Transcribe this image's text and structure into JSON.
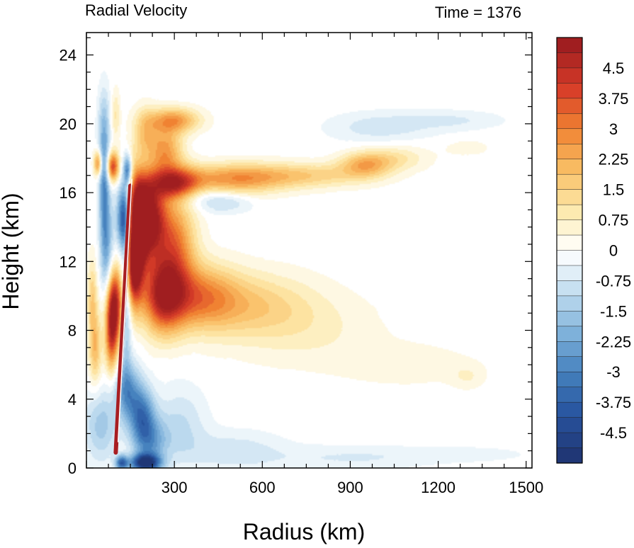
{
  "chart_data": {
    "type": "heatmap",
    "title": "Radial Velocity",
    "subtitle": "Time = 1376",
    "xlabel": "Radius (km)",
    "ylabel": "Height (km)",
    "xlim": [
      0,
      1520
    ],
    "ylim": [
      0,
      25.3
    ],
    "xticks": [
      300,
      600,
      900,
      1200,
      1500
    ],
    "xtick_labels": [
      "300",
      "600",
      "900",
      "1200",
      "1500"
    ],
    "yticks": [
      0,
      4,
      8,
      12,
      16,
      20,
      24
    ],
    "ytick_labels": [
      "0",
      "4",
      "8",
      "12",
      "16",
      "20",
      "24"
    ],
    "colorbar": {
      "min": -5.25,
      "max": 5.25,
      "step": 0.375,
      "labels": [
        "4.5",
        "3.75",
        "3",
        "2.25",
        "1.5",
        "0.75",
        "0",
        "-0.75",
        "-1.5",
        "-2.25",
        "-3",
        "-3.75",
        "-4.5"
      ],
      "label_values": [
        4.5,
        3.75,
        3,
        2.25,
        1.5,
        0.75,
        0,
        -0.75,
        -1.5,
        -2.25,
        -3,
        -3.75,
        -4.5
      ]
    },
    "features": [
      {
        "r": 130,
        "z": 14.5,
        "v": -5.0,
        "sr": 18,
        "sz": 1.4
      },
      {
        "r": 140,
        "z": 17.3,
        "v": -3.0,
        "sr": 10,
        "sz": 0.6
      },
      {
        "r": 60,
        "z": 16.5,
        "v": -2.5,
        "sr": 12,
        "sz": 2.5
      },
      {
        "r": 70,
        "z": 12.5,
        "v": -2.0,
        "sr": 15,
        "sz": 2.5
      },
      {
        "r": 135,
        "z": 10.5,
        "v": -2.5,
        "sr": 12,
        "sz": 3.0
      },
      {
        "r": 20,
        "z": 10.0,
        "v": 1.5,
        "sr": 12,
        "sz": 1.5
      },
      {
        "r": 90,
        "z": 17.5,
        "v": 4.0,
        "sr": 15,
        "sz": 0.6
      },
      {
        "r": 40,
        "z": 17.7,
        "v": 3.0,
        "sr": 10,
        "sz": 0.5
      },
      {
        "r": 210,
        "z": 14.5,
        "v": 5.5,
        "sr": 40,
        "sz": 1.6
      },
      {
        "r": 170,
        "z": 14.0,
        "v": 5.5,
        "sr": 25,
        "sz": 2.0
      },
      {
        "r": 160,
        "z": 11.5,
        "v": 4.0,
        "sr": 20,
        "sz": 1.5
      },
      {
        "r": 95,
        "z": 9.5,
        "v": 5.0,
        "sr": 20,
        "sz": 1.5
      },
      {
        "r": 85,
        "z": 7.5,
        "v": 3.0,
        "sr": 15,
        "sz": 1.5
      },
      {
        "r": 30,
        "z": 7.0,
        "v": 2.0,
        "sr": 15,
        "sz": 1.5
      },
      {
        "r": 300,
        "z": 13.0,
        "v": 3.0,
        "sr": 50,
        "sz": 2.0
      },
      {
        "r": 260,
        "z": 10.0,
        "v": 4.0,
        "sr": 50,
        "sz": 1.5
      },
      {
        "r": 380,
        "z": 10.0,
        "v": 2.5,
        "sr": 90,
        "sz": 1.3
      },
      {
        "r": 550,
        "z": 9.5,
        "v": 1.5,
        "sr": 150,
        "sz": 1.3
      },
      {
        "r": 750,
        "z": 8.0,
        "v": 0.6,
        "sr": 180,
        "sz": 1.5
      },
      {
        "r": 1100,
        "z": 6.0,
        "v": 0.5,
        "sr": 150,
        "sz": 0.8
      },
      {
        "r": 1300,
        "z": 5.3,
        "v": 0.5,
        "sr": 40,
        "sz": 0.5
      },
      {
        "r": 300,
        "z": 16.5,
        "v": 4.0,
        "sr": 60,
        "sz": 0.7
      },
      {
        "r": 500,
        "z": 16.8,
        "v": 2.5,
        "sr": 120,
        "sz": 0.6
      },
      {
        "r": 750,
        "z": 17.0,
        "v": 1.5,
        "sr": 150,
        "sz": 0.5
      },
      {
        "r": 950,
        "z": 17.6,
        "v": 2.0,
        "sr": 60,
        "sz": 0.5
      },
      {
        "r": 1050,
        "z": 18.0,
        "v": 1.0,
        "sr": 80,
        "sz": 0.5
      },
      {
        "r": 1300,
        "z": 18.6,
        "v": 0.5,
        "sr": 50,
        "sz": 0.3
      },
      {
        "r": 350,
        "z": 15.7,
        "v": -1.0,
        "sr": 80,
        "sz": 0.5
      },
      {
        "r": 480,
        "z": 15.4,
        "v": -0.8,
        "sr": 60,
        "sz": 0.4
      },
      {
        "r": 270,
        "z": 18.5,
        "v": 2.5,
        "sr": 40,
        "sz": 1.0
      },
      {
        "r": 300,
        "z": 20.2,
        "v": 2.5,
        "sr": 60,
        "sz": 0.5
      },
      {
        "r": 200,
        "z": 19.5,
        "v": 1.5,
        "sr": 30,
        "sz": 1.0
      },
      {
        "r": 1000,
        "z": 19.8,
        "v": -0.8,
        "sr": 120,
        "sz": 0.6
      },
      {
        "r": 1250,
        "z": 20.2,
        "v": -0.6,
        "sr": 120,
        "sz": 0.4
      },
      {
        "r": 60,
        "z": 20.0,
        "v": -1.0,
        "sr": 15,
        "sz": 1.5
      },
      {
        "r": 100,
        "z": 20.5,
        "v": 1.0,
        "sr": 10,
        "sz": 1.0
      },
      {
        "r": 190,
        "z": 3.0,
        "v": -3.0,
        "sr": 30,
        "sz": 1.2
      },
      {
        "r": 140,
        "z": 4.5,
        "v": -2.5,
        "sr": 30,
        "sz": 1.2
      },
      {
        "r": 220,
        "z": 1.5,
        "v": -2.0,
        "sr": 40,
        "sz": 1.0
      },
      {
        "r": 50,
        "z": 2.5,
        "v": -1.5,
        "sr": 40,
        "sz": 1.5
      },
      {
        "r": 320,
        "z": 2.5,
        "v": -1.0,
        "sr": 60,
        "sz": 1.5
      },
      {
        "r": 200,
        "z": 0.3,
        "v": -5.0,
        "sr": 35,
        "sz": 0.35
      },
      {
        "r": 120,
        "z": 0.3,
        "v": -3.5,
        "sr": 15,
        "sz": 0.3
      },
      {
        "r": 500,
        "z": 1.0,
        "v": -0.8,
        "sr": 120,
        "sz": 0.8
      },
      {
        "r": 900,
        "z": 0.6,
        "v": -0.6,
        "sr": 200,
        "sz": 0.5
      },
      {
        "r": 1300,
        "z": 0.8,
        "v": -0.4,
        "sr": 150,
        "sz": 0.3
      }
    ]
  }
}
